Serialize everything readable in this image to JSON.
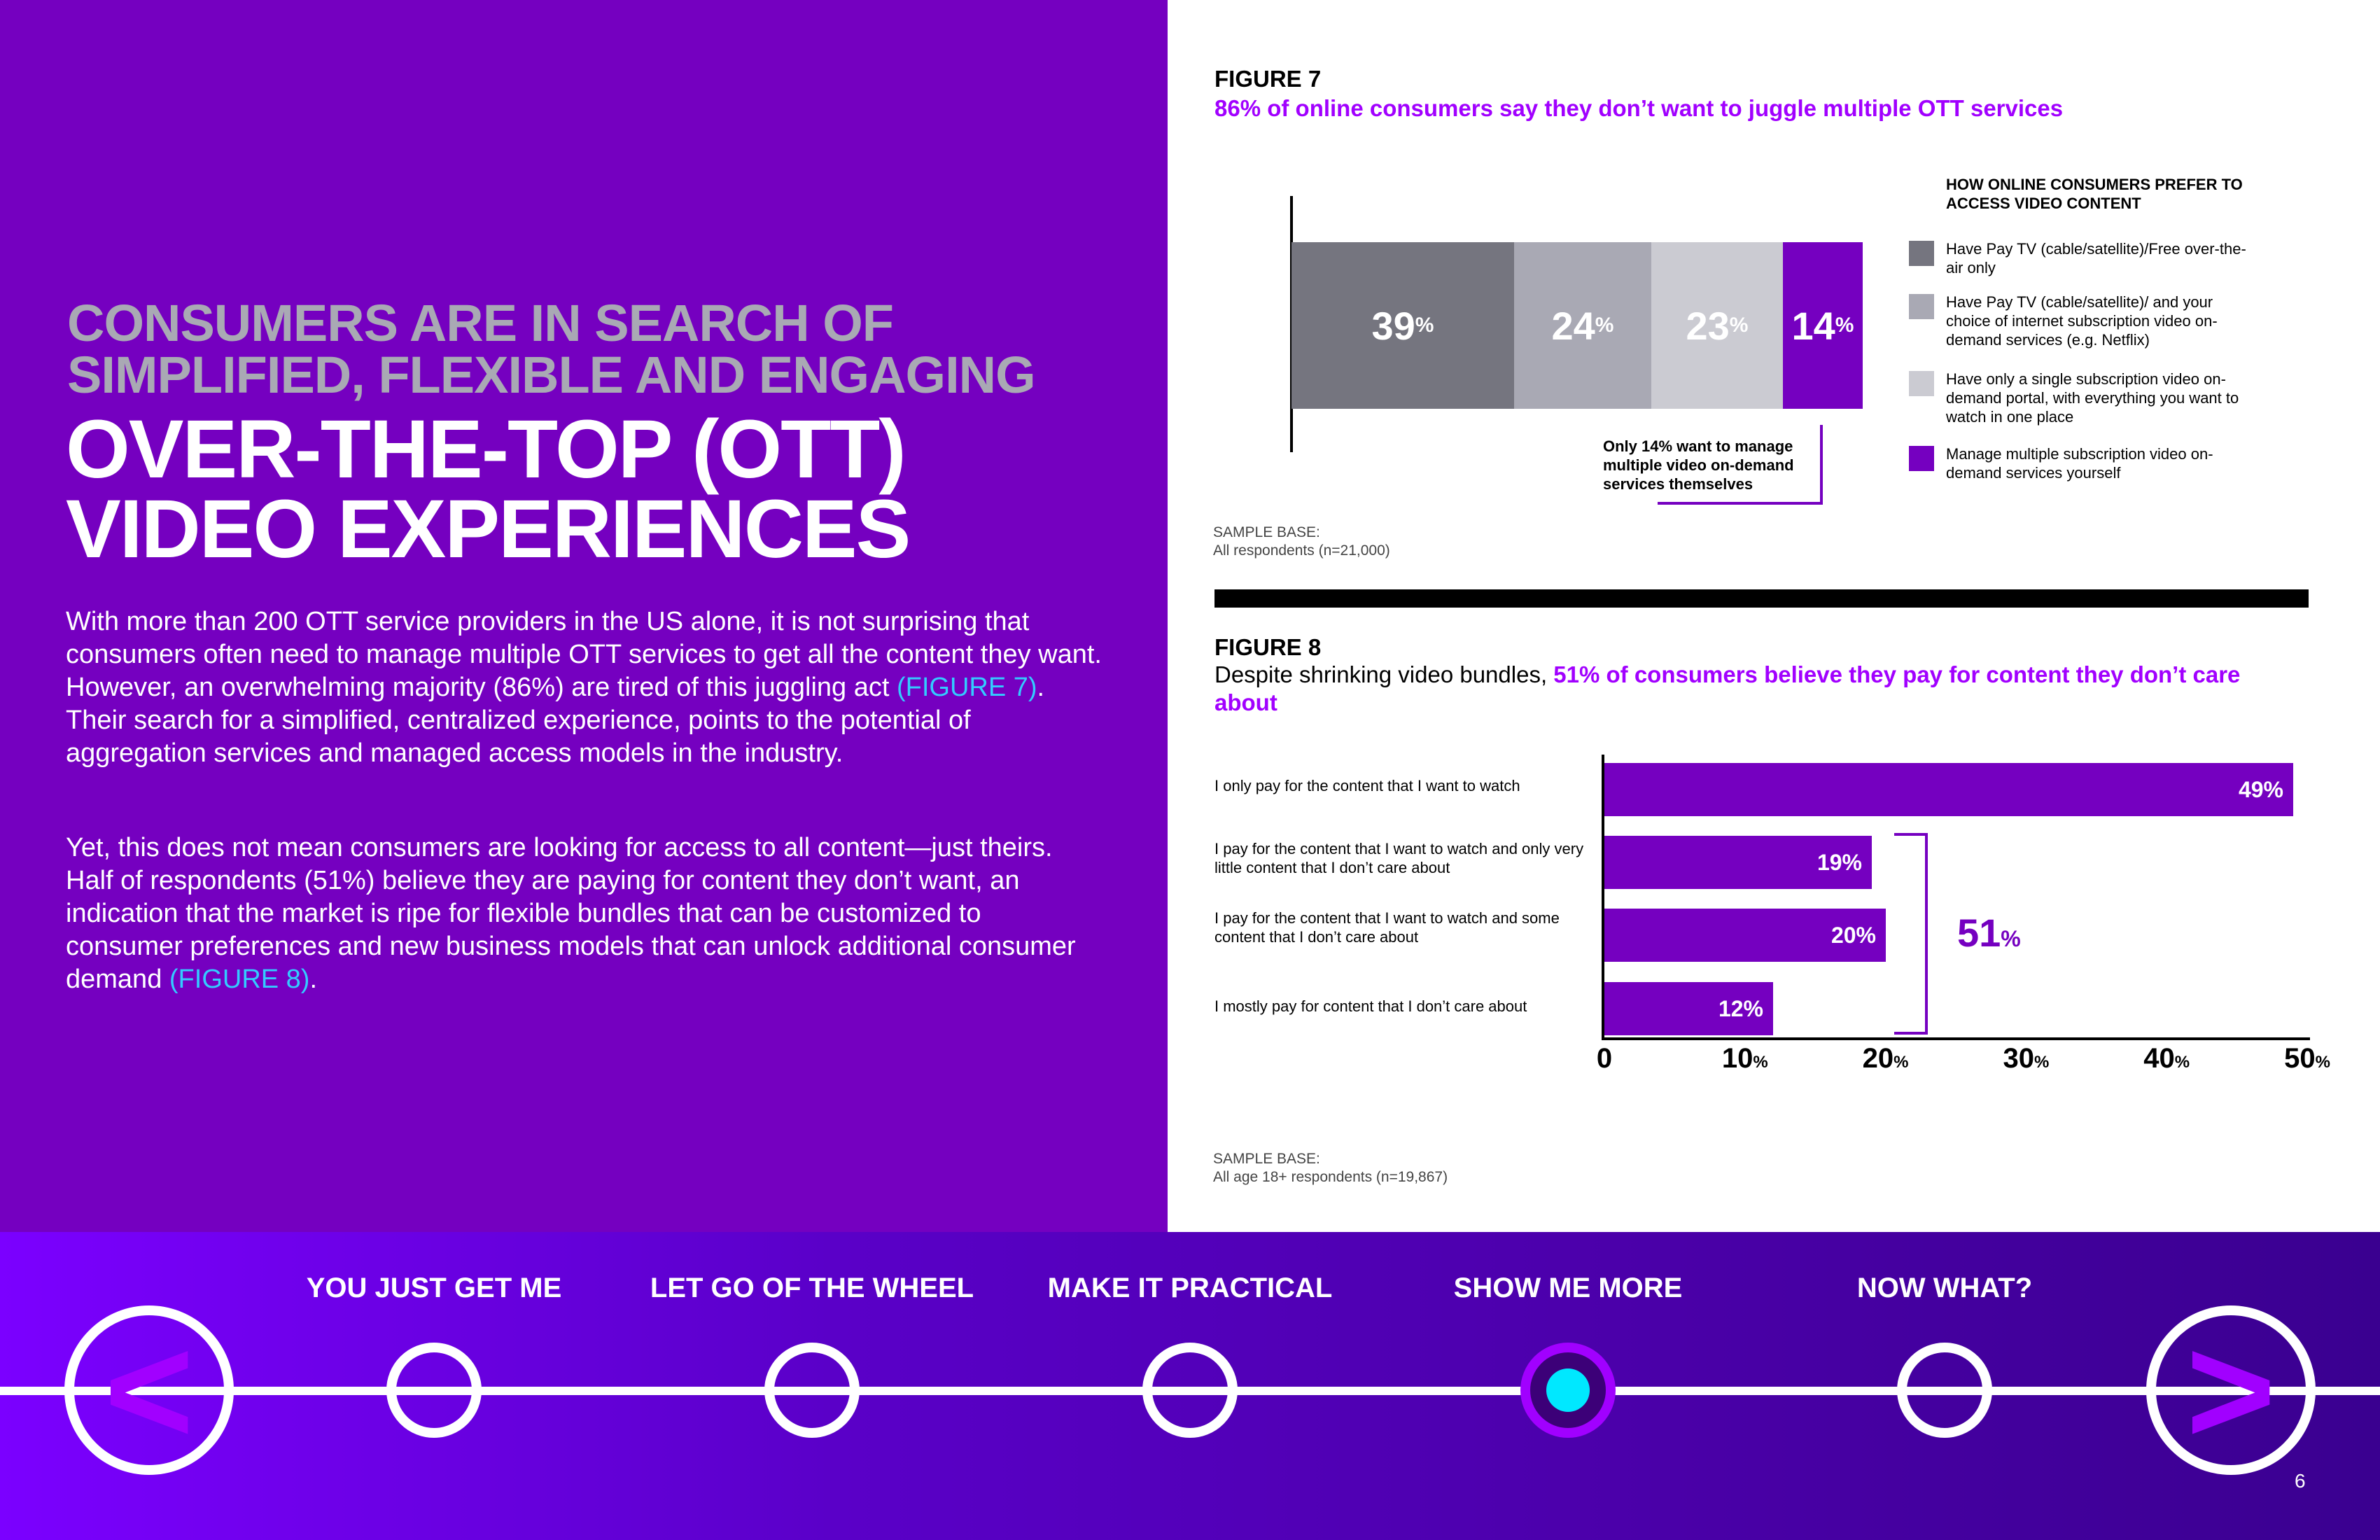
{
  "left": {
    "heading_grey": [
      "CONSUMERS ARE IN SEARCH OF",
      "SIMPLIFIED, FLEXIBLE AND ENGAGING"
    ],
    "heading_white": [
      "OVER-THE-TOP (OTT)",
      "VIDEO EXPERIENCES"
    ],
    "p1_a": "With more than 200 OTT service providers in the US alone, it is not surprising that consumers often need to manage multiple OTT services to get all the content they want. However, an overwhelming majority (86%) are tired of this juggling act ",
    "p1_link": "(FIGURE 7)",
    "p1_b": ". Their search for a simplified, centralized experience, points to the potential of aggregation services and managed access models in the industry.",
    "p2_a": "Yet, this does not mean consumers are looking for access to all content—just theirs. Half of respondents (51%) believe they are paying for content they don’t want, an indication that the market is ripe for flexible bundles that can be customized to consumer preferences and new business models that can unlock additional consumer demand ",
    "p2_link": "(FIGURE 8)",
    "p2_b": "."
  },
  "fig7": {
    "label": "FIGURE 7",
    "subtitle": "86% of online consumers say they don’t want to juggle multiple OTT services",
    "legend_title": "HOW ONLINE CONSUMERS PREFER TO ACCESS VIDEO CONTENT",
    "callout": "Only 14% want to manage multiple video on-demand services themselves",
    "sample_label": "SAMPLE BASE:",
    "sample_text": "All respondents (n=21,000)"
  },
  "fig8": {
    "label": "FIGURE 8",
    "subtitle_plain": "Despite shrinking video bundles, ",
    "subtitle_hl": "51% of consumers believe they pay for content they don’t care about",
    "bracket_value": "51",
    "bracket_unit": "%",
    "sample_label": "SAMPLE BASE:",
    "sample_text": "All age 18+ respondents (n=19,867)"
  },
  "chart_data": [
    {
      "type": "bar",
      "orientation": "horizontal-stacked",
      "title": "86% of online consumers say they don’t want to juggle multiple OTT services",
      "legend_title": "HOW ONLINE CONSUMERS PREFER TO ACCESS VIDEO CONTENT",
      "legend_position": "right",
      "series": [
        {
          "name": "Have Pay TV (cable/satellite)/Free over-the-air only",
          "value": 39,
          "color": "#75757f"
        },
        {
          "name": "Have Pay TV (cable/satellite)/ and your choice of internet subscription video on-demand services (e.g. Netflix)",
          "value": 24,
          "color": "#a9a9b4"
        },
        {
          "name": "Have only a single subscription video on-demand portal, with everything you want to watch in one place",
          "value": 23,
          "color": "#cbcbd2"
        },
        {
          "name": "Manage multiple subscription video on-demand services yourself",
          "value": 14,
          "color": "#7500c0"
        }
      ],
      "unit": "%"
    },
    {
      "type": "bar",
      "orientation": "horizontal",
      "title": "Despite shrinking video bundles, 51% of consumers believe they pay for content they don’t care about",
      "categories": [
        "I only pay for the content that I want to watch",
        "I pay for the content that I want to watch and only very little content that I don’t care about",
        "I pay for the content that I want to watch and some content that I don’t care about",
        "I mostly pay for content that I don’t care about"
      ],
      "values": [
        49,
        19,
        20,
        12
      ],
      "xlim": [
        0,
        50
      ],
      "xticks": [
        0,
        10,
        20,
        30,
        40,
        50
      ],
      "unit": "%",
      "bar_color": "#7500c0"
    }
  ],
  "nav": {
    "items": [
      "YOU JUST GET ME",
      "LET GO OF THE WHEEL",
      "MAKE IT PRACTICAL",
      "SHOW ME MORE",
      "NOW WHAT?"
    ],
    "active_index": 3,
    "prev_glyph": "<",
    "next_glyph": ">",
    "page_number": "6"
  }
}
